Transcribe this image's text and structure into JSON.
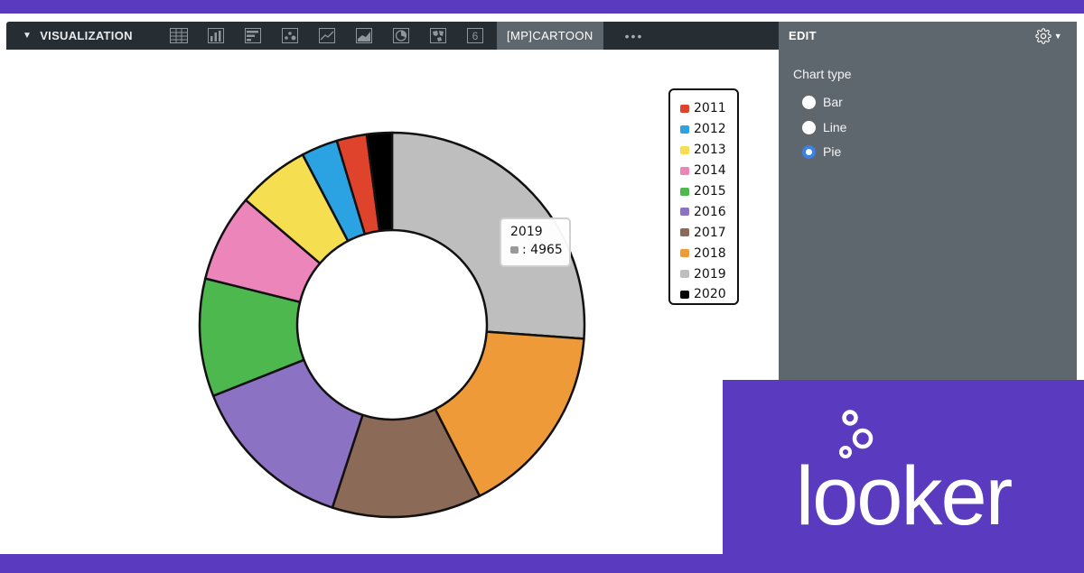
{
  "toolbar": {
    "title": "VISUALIZATION",
    "icons": [
      "table-icon",
      "column-chart-icon",
      "bar-chart-icon",
      "scatter-chart-icon",
      "line-chart-icon",
      "area-chart-icon",
      "pie-chart-icon",
      "map-icon",
      "single-value-icon"
    ],
    "active_tab": "[MP]CARTOON",
    "more": "•••"
  },
  "edit_panel": {
    "title": "EDIT",
    "section_label": "Chart type",
    "options": [
      {
        "label": "Bar",
        "checked": false
      },
      {
        "label": "Line",
        "checked": false
      },
      {
        "label": "Pie",
        "checked": true
      }
    ]
  },
  "chart_data": {
    "type": "pie",
    "labels": [
      "2011",
      "2012",
      "2013",
      "2014",
      "2015",
      "2016",
      "2017",
      "2018",
      "2019",
      "2020"
    ],
    "values": [
      480,
      580,
      1150,
      1400,
      1880,
      2650,
      2380,
      3100,
      4965,
      400
    ],
    "colors": [
      "#e0432b",
      "#2ba3e2",
      "#f5de50",
      "#ec86ba",
      "#4db84d",
      "#8c72c2",
      "#8c6a58",
      "#ef9a38",
      "#bebebe",
      "#000000"
    ],
    "legend_position": "top-right",
    "tooltip": {
      "label": "2019",
      "value": ": 4965"
    }
  },
  "logo": {
    "text": "looker"
  }
}
